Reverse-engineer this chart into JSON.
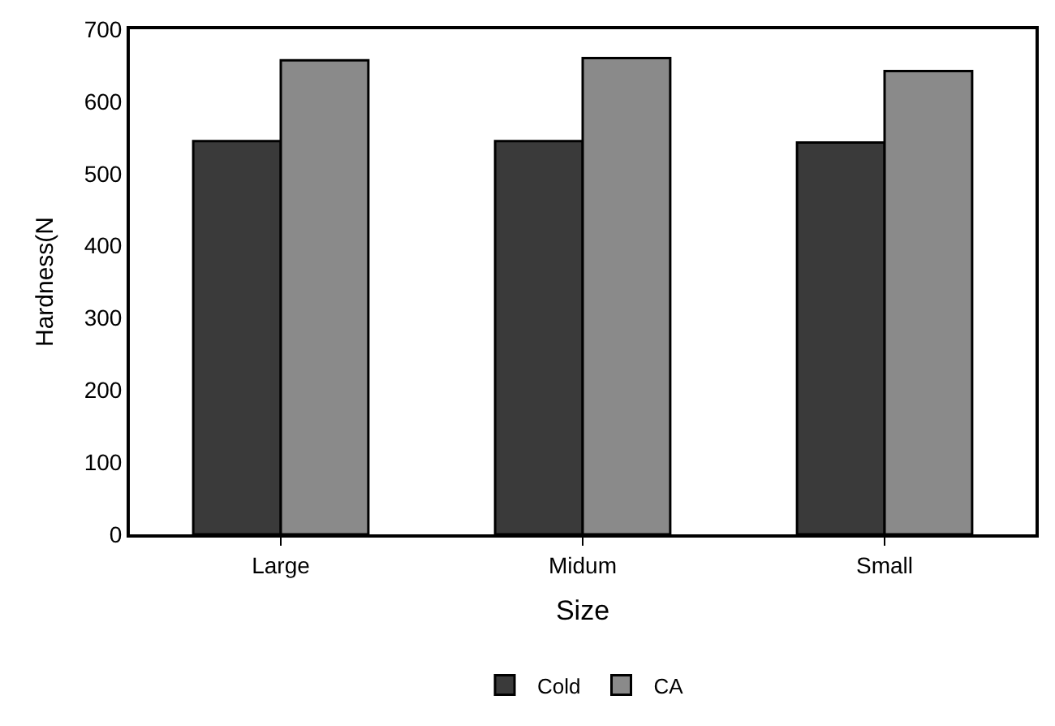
{
  "chart_data": {
    "type": "bar",
    "xlabel": "Size",
    "ylabel": "Hardness(N",
    "categories": [
      "Large",
      "Midum",
      "Small"
    ],
    "series": [
      {
        "name": "Cold",
        "color": "#3a3a3a",
        "values": [
          545,
          545,
          543
        ]
      },
      {
        "name": "CA",
        "color": "#8a8a8a",
        "values": [
          657,
          660,
          642
        ]
      }
    ],
    "ylim": [
      0,
      700
    ],
    "yticks": [
      0,
      100,
      200,
      300,
      400,
      500,
      600,
      700
    ],
    "legend": "bottom"
  }
}
